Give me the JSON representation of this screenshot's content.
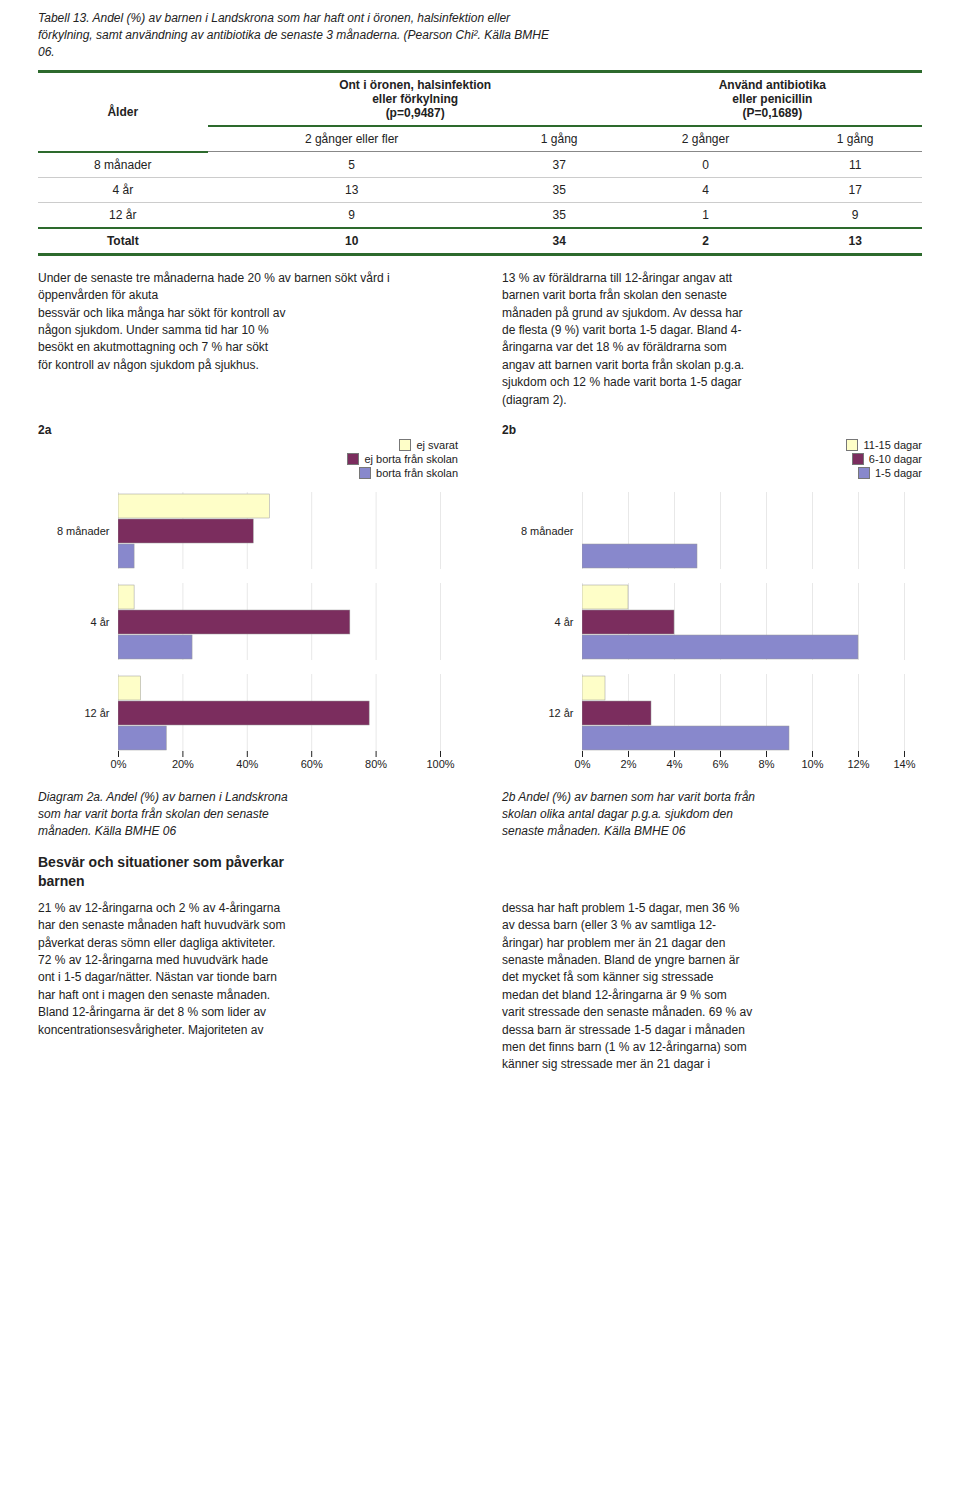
{
  "chart_data": [
    {
      "type": "table",
      "title": "Tabell 13. Andel (%) av barnen i Landskrona som har haft ont i öronen, halsinfektion eller\nförkylning, samt användning av antibiotika de senaste 3 månaderna. (Pearson Chi². Källa BMHE\n06.",
      "columns": [
        {
          "label": "Ålder"
        },
        {
          "label": "Ont i öronen, halsinfektion\neller förkylning\n(p=0,9487)",
          "subheaders": [
            "2 gånger eller fler",
            "1 gång"
          ]
        },
        {
          "label": "Använd antibiotika\neller penicillin\n(P=0,1689)",
          "subheaders": [
            "2 gånger",
            "1 gång"
          ]
        }
      ],
      "rows": [
        {
          "label": "8 månader",
          "values": [
            5,
            37,
            0,
            11
          ]
        },
        {
          "label": "4 år",
          "values": [
            13,
            35,
            4,
            17
          ]
        },
        {
          "label": "12 år",
          "values": [
            9,
            35,
            1,
            9
          ]
        },
        {
          "label": "Totalt",
          "values": [
            10,
            34,
            2,
            13
          ]
        }
      ]
    },
    {
      "type": "bar",
      "orientation": "horizontal",
      "title": "2a",
      "categories": [
        "12 år",
        "4 år",
        "8 månader"
      ],
      "series": [
        {
          "name": "ej svarat",
          "color": "#fefec8",
          "values": [
            7,
            5,
            47
          ]
        },
        {
          "name": "ej borta från skolan",
          "color": "#7b2d5e",
          "values": [
            78,
            72,
            42
          ]
        },
        {
          "name": "borta från skolan",
          "color": "#8888cc",
          "values": [
            15,
            23,
            5
          ]
        }
      ],
      "xlim": [
        0,
        100
      ],
      "xticks": [
        {
          "value": 0,
          "label": "0%"
        },
        {
          "value": 20,
          "label": "20%"
        },
        {
          "value": 40,
          "label": "40%"
        },
        {
          "value": 60,
          "label": "60%"
        },
        {
          "value": 80,
          "label": "80%"
        },
        {
          "value": 100,
          "label": "100%"
        }
      ],
      "grid": true,
      "legend": "upper right",
      "annotations": [
        "Diagram 2a. Andel (%) av barnen i Landskrona\nsom har varit borta från skolan den senaste\nmånaden. Källa BMHE 06"
      ]
    },
    {
      "type": "bar",
      "orientation": "horizontal",
      "title": "2b",
      "categories": [
        "12 år",
        "4 år",
        "8 månader"
      ],
      "series": [
        {
          "name": "11-15 dagar",
          "color": "#fefec8",
          "values": [
            1,
            2,
            0
          ]
        },
        {
          "name": "6-10 dagar",
          "color": "#7b2d5e",
          "values": [
            3,
            4,
            0
          ]
        },
        {
          "name": "1-5 dagar",
          "color": "#8888cc",
          "values": [
            9,
            12,
            5
          ]
        }
      ],
      "xlim": [
        0,
        14
      ],
      "xticks": [
        {
          "value": 0,
          "label": "0%"
        },
        {
          "value": 2,
          "label": "2%"
        },
        {
          "value": 4,
          "label": "4%"
        },
        {
          "value": 6,
          "label": "6%"
        },
        {
          "value": 8,
          "label": "8%"
        },
        {
          "value": 10,
          "label": "10%"
        },
        {
          "value": 12,
          "label": "12%"
        },
        {
          "value": 14,
          "label": "14%"
        }
      ],
      "grid": true,
      "legend": "upper right",
      "annotations": [
        "2b Andel (%) av barnen som har varit borta från\nskolan olika antal dagar p.g.a. sjukdom den\nsenaste månaden.  Källa BMHE 06"
      ]
    }
  ],
  "annotations": [
    "Under de senaste tre månaderna hade 20 % av barnen sökt vård i öppenvården för akuta\nbessvär och lika många har sökt för kontroll av\nnågon sjukdom. Under samma tid har 10 %\nbesökt en akutmottagning och 7 % har sökt\nför kontroll av någon sjukdom på sjukhus.",
    "13 % av föräldrarna till 12-åringar angav att\nbarnen varit borta från skolan den senaste\nmånaden på grund av sjukdom. Av dessa har\nde flesta (9 %) varit borta 1-5 dagar. Bland 4-\nåringarna var det 18 % av föräldrarna som\nangav att barnen varit borta från skolan p.g.a.\nsjukdom och 12 % hade varit borta 1-5 dagar\n(diagram 2).",
    "Besvär och situationer som påverkar\nbarnen",
    "21 % av 12-åringarna och 2 % av 4-åringarna\nhar den senaste månaden haft huvudvärk som\npåverkat deras sömn eller dagliga aktiviteter.\n72 % av 12-åringarna med huvudvärk hade\nont i 1-5 dagar/nätter. Nästan var tionde barn\nhar haft ont i magen den senaste månaden.\nBland 12-åringarna är det 8 % som lider av\nkoncentrationsesvårigheter.  Majoriteten av",
    "dessa har haft problem 1-5 dagar, men 36 %\nav dessa barn (eller 3 % av samtliga 12-\nåringar) har problem mer än 21 dagar den\nsenaste månaden. Bland de yngre barnen är\ndet mycket få som känner sig stressade\nmedan det bland 12-åringarna är 9 % som\nvarit stressade den senaste månaden. 69 % av\ndessa barn är stressade 1-5 dagar i månaden\nmen det finns barn (1 % av 12-åringarna) som\nkänner sig stressade mer än 21 dagar i"
  ]
}
